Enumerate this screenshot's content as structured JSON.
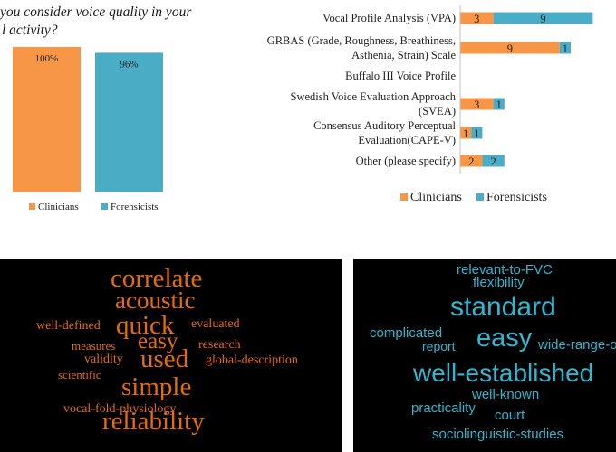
{
  "colors": {
    "clinicians": "#f79646",
    "forensicists": "#4bacc6",
    "cloud_left_text": "#e46c0a",
    "cloud_right_text": "#31b6d0"
  },
  "chart_data": [
    {
      "type": "bar",
      "title": "…you consider voice quality in your …l activity?",
      "title_lines": [
        "you consider voice quality in your",
        "l activity?"
      ],
      "categories": [
        "Clinicians",
        "Forensicists"
      ],
      "values": [
        100,
        96
      ],
      "value_labels": [
        "100%",
        "96%"
      ],
      "legend": [
        "Clinicians",
        "Forensicists"
      ],
      "legend_position": "bottom",
      "grid": false
    },
    {
      "type": "bar",
      "orientation": "horizontal",
      "stacked": true,
      "categories": [
        [
          "Vocal Profile Analysis (VPA)"
        ],
        [
          "GRBAS (Grade, Roughness, Breathiness,",
          "Asthenia, Strain) Scale"
        ],
        [
          "Buffalo III Voice Profile"
        ],
        [
          "Swedish Voice Evaluation Approach",
          "(SVEA)"
        ],
        [
          "Consensus Auditory Perceptual",
          "Evaluation(CAPE-V)"
        ],
        [
          "Other (please specify)"
        ]
      ],
      "series": [
        {
          "name": "Clinicians",
          "values": [
            3,
            9,
            0,
            3,
            1,
            2
          ]
        },
        {
          "name": "Forensicists",
          "values": [
            9,
            1,
            0,
            1,
            1,
            2
          ]
        }
      ],
      "legend_position": "bottom",
      "grid": false
    }
  ],
  "word_clouds": {
    "left": [
      {
        "text": "correlate",
        "size": 29
      },
      {
        "text": "acoustic",
        "size": 27
      },
      {
        "text": "quick",
        "size": 29
      },
      {
        "text": "well-defined",
        "size": 14
      },
      {
        "text": "evaluated",
        "size": 14
      },
      {
        "text": "easy",
        "size": 25
      },
      {
        "text": "measures",
        "size": 13
      },
      {
        "text": "research",
        "size": 14
      },
      {
        "text": "validity",
        "size": 14
      },
      {
        "text": "used",
        "size": 29
      },
      {
        "text": "global-description",
        "size": 14
      },
      {
        "text": "scientific",
        "size": 13
      },
      {
        "text": "simple",
        "size": 29
      },
      {
        "text": "reliability",
        "size": 29
      },
      {
        "text": "vocal-fold-physiology",
        "size": 14
      }
    ],
    "right": [
      {
        "text": "relevant-to-FVC",
        "size": 15
      },
      {
        "text": "flexibility",
        "size": 15
      },
      {
        "text": "standard",
        "size": 30
      },
      {
        "text": "complicated",
        "size": 15
      },
      {
        "text": "easy",
        "size": 29
      },
      {
        "text": "report",
        "size": 14
      },
      {
        "text": "wide-range-of-",
        "size": 15
      },
      {
        "text": "well-established",
        "size": 28
      },
      {
        "text": "well-known",
        "size": 15
      },
      {
        "text": "practicality",
        "size": 15
      },
      {
        "text": "court",
        "size": 15
      },
      {
        "text": "sociolinguistic-studies",
        "size": 15
      }
    ]
  }
}
